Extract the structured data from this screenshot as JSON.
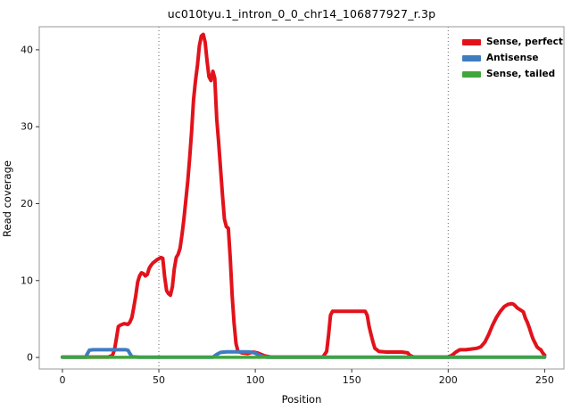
{
  "chart_data": {
    "type": "line",
    "title": "uc010tyu.1_intron_0_0_chr14_106877927_r.3p",
    "xlabel": "Position",
    "ylabel": "Read coverage",
    "xlim": [
      -12,
      260
    ],
    "ylim": [
      -1.5,
      43
    ],
    "x_ticks": [
      0,
      50,
      100,
      150,
      200,
      250
    ],
    "y_ticks": [
      0,
      10,
      20,
      30,
      40
    ],
    "guide_lines_x": [
      50,
      200
    ],
    "grid": false,
    "legend_position": "top-right",
    "series": [
      {
        "name": "Sense, perfect",
        "color": "#e2121b",
        "width": 4,
        "points": [
          [
            0,
            0.05
          ],
          [
            24,
            0.05
          ],
          [
            26,
            0.3
          ],
          [
            27,
            1
          ],
          [
            28,
            2.5
          ],
          [
            29,
            4
          ],
          [
            30,
            4.2
          ],
          [
            32,
            4.4
          ],
          [
            34,
            4.3
          ],
          [
            35,
            4.6
          ],
          [
            36,
            5.2
          ],
          [
            37,
            6.5
          ],
          [
            38,
            8
          ],
          [
            39,
            9.8
          ],
          [
            40,
            10.6
          ],
          [
            41,
            11
          ],
          [
            42,
            10.9
          ],
          [
            43,
            10.6
          ],
          [
            44,
            10.8
          ],
          [
            45,
            11.6
          ],
          [
            46,
            12
          ],
          [
            47,
            12.3
          ],
          [
            49,
            12.7
          ],
          [
            51,
            13
          ],
          [
            52,
            12.9
          ],
          [
            53,
            10.5
          ],
          [
            54,
            8.7
          ],
          [
            55,
            8.3
          ],
          [
            56,
            8.1
          ],
          [
            57,
            9.2
          ],
          [
            58,
            11.5
          ],
          [
            59,
            13
          ],
          [
            60,
            13.4
          ],
          [
            61,
            14.2
          ],
          [
            62,
            16
          ],
          [
            63,
            18
          ],
          [
            64,
            20.5
          ],
          [
            65,
            23
          ],
          [
            66,
            26
          ],
          [
            67,
            29.5
          ],
          [
            68,
            33.5
          ],
          [
            69,
            36
          ],
          [
            70,
            38
          ],
          [
            71,
            40.5
          ],
          [
            72,
            41.8
          ],
          [
            73,
            42
          ],
          [
            74,
            41
          ],
          [
            75,
            38.5
          ],
          [
            76,
            36.5
          ],
          [
            77,
            36
          ],
          [
            78,
            37.2
          ],
          [
            79,
            36.3
          ],
          [
            80,
            31
          ],
          [
            81,
            28
          ],
          [
            82,
            24.5
          ],
          [
            83,
            21
          ],
          [
            84,
            18
          ],
          [
            85,
            17
          ],
          [
            86,
            16.8
          ],
          [
            87,
            13
          ],
          [
            88,
            8
          ],
          [
            89,
            4.5
          ],
          [
            90,
            1.8
          ],
          [
            91,
            0.8
          ],
          [
            93,
            0.6
          ],
          [
            96,
            0.5
          ],
          [
            99,
            0.7
          ],
          [
            101,
            0.6
          ],
          [
            103,
            0.4
          ],
          [
            105,
            0.2
          ],
          [
            108,
            0.05
          ],
          [
            135,
            0.05
          ],
          [
            137,
            0.8
          ],
          [
            138,
            3
          ],
          [
            139,
            5.5
          ],
          [
            140,
            6
          ],
          [
            150,
            6
          ],
          [
            157,
            6
          ],
          [
            158,
            5.5
          ],
          [
            159,
            4
          ],
          [
            160,
            3
          ],
          [
            161,
            2
          ],
          [
            162,
            1.2
          ],
          [
            164,
            0.8
          ],
          [
            168,
            0.7
          ],
          [
            172,
            0.7
          ],
          [
            176,
            0.7
          ],
          [
            179,
            0.6
          ],
          [
            180,
            0.3
          ],
          [
            182,
            0.05
          ],
          [
            200,
            0.05
          ],
          [
            202,
            0.3
          ],
          [
            204,
            0.7
          ],
          [
            206,
            1
          ],
          [
            209,
            1
          ],
          [
            212,
            1.1
          ],
          [
            215,
            1.2
          ],
          [
            217,
            1.4
          ],
          [
            219,
            2
          ],
          [
            221,
            3
          ],
          [
            223,
            4.2
          ],
          [
            225,
            5.2
          ],
          [
            227,
            6
          ],
          [
            229,
            6.6
          ],
          [
            231,
            6.9
          ],
          [
            233,
            7
          ],
          [
            234,
            6.9
          ],
          [
            236,
            6.4
          ],
          [
            238,
            6.1
          ],
          [
            239,
            5.9
          ],
          [
            240,
            5.1
          ],
          [
            241,
            4.6
          ],
          [
            242,
            3.9
          ],
          [
            243,
            3.1
          ],
          [
            244,
            2.4
          ],
          [
            245,
            1.9
          ],
          [
            246,
            1.4
          ],
          [
            247,
            1.15
          ],
          [
            248,
            1
          ],
          [
            249,
            0.6
          ],
          [
            250,
            0.3
          ]
        ]
      },
      {
        "name": "Antisense",
        "color": "#3f7cbf",
        "width": 4,
        "points": [
          [
            0,
            0.03
          ],
          [
            12,
            0.03
          ],
          [
            13,
            0.5
          ],
          [
            14,
            0.95
          ],
          [
            16,
            1
          ],
          [
            33,
            1
          ],
          [
            34,
            0.95
          ],
          [
            35,
            0.5
          ],
          [
            36,
            0.1
          ],
          [
            40,
            0.03
          ],
          [
            78,
            0.03
          ],
          [
            80,
            0.4
          ],
          [
            82,
            0.65
          ],
          [
            85,
            0.72
          ],
          [
            90,
            0.72
          ],
          [
            95,
            0.72
          ],
          [
            98,
            0.7
          ],
          [
            100,
            0.55
          ],
          [
            102,
            0.3
          ],
          [
            104,
            0.12
          ],
          [
            106,
            0.03
          ],
          [
            250,
            0.03
          ]
        ]
      },
      {
        "name": "Sense, tailed",
        "color": "#3fa53c",
        "width": 3.5,
        "points": [
          [
            0,
            0.02
          ],
          [
            250,
            0.02
          ]
        ]
      }
    ]
  }
}
